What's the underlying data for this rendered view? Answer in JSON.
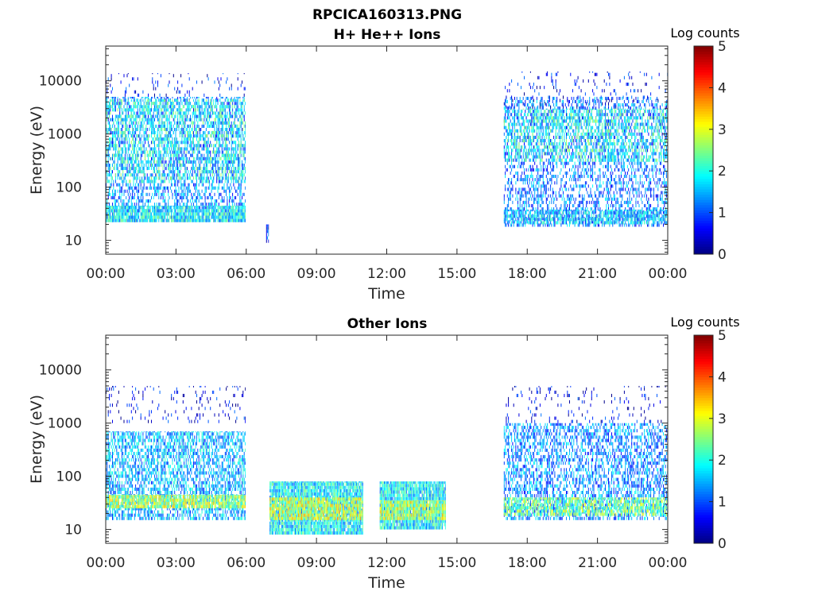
{
  "figure": {
    "title": "RPCICA160313.PNG"
  },
  "chart_data": [
    {
      "type": "heatmap",
      "title": "H+ He++ Ions",
      "xlabel": "Time",
      "ylabel": "Energy (eV)",
      "x_unit": "hours",
      "xlim": [
        0,
        24
      ],
      "x_ticks": [
        0,
        3,
        6,
        9,
        12,
        15,
        18,
        21,
        24
      ],
      "x_tick_labels": [
        "00:00",
        "03:00",
        "06:00",
        "09:00",
        "12:00",
        "15:00",
        "18:00",
        "21:00",
        "00:00"
      ],
      "y_scale": "log",
      "ylim": [
        5.5,
        45000
      ],
      "y_ticks": [
        10,
        100,
        1000,
        10000
      ],
      "y_tick_labels": [
        "10",
        "100",
        "1000",
        "10000"
      ],
      "colorbar": {
        "label": "Log counts",
        "range": [
          0,
          5
        ],
        "ticks": [
          0,
          1,
          2,
          3,
          4,
          5
        ],
        "colormap": "jet"
      },
      "blocks": [
        {
          "t": [
            0.0,
            5.95
          ],
          "e": [
            22,
            5000
          ],
          "level": 1.3,
          "density": 0.45
        },
        {
          "t": [
            0.0,
            5.95
          ],
          "e": [
            22,
            45
          ],
          "level": 1.8,
          "density": 0.85
        },
        {
          "t": [
            0.0,
            5.95
          ],
          "e": [
            120,
            4500
          ],
          "level": 2.0,
          "density": 0.35
        },
        {
          "t": [
            0.0,
            5.95
          ],
          "e": [
            5000,
            14000
          ],
          "level": 0.6,
          "density": 0.08
        },
        {
          "t": [
            6.85,
            6.95
          ],
          "e": [
            9,
            20
          ],
          "level": 0.8,
          "density": 0.9
        },
        {
          "t": [
            17.0,
            24.0
          ],
          "e": [
            18,
            5000
          ],
          "level": 1.2,
          "density": 0.4
        },
        {
          "t": [
            17.0,
            24.0
          ],
          "e": [
            20,
            38
          ],
          "level": 1.6,
          "density": 0.7
        },
        {
          "t": [
            17.0,
            24.0
          ],
          "e": [
            300,
            3000
          ],
          "level": 2.0,
          "density": 0.4
        },
        {
          "t": [
            17.0,
            24.0
          ],
          "e": [
            3000,
            15000
          ],
          "level": 0.6,
          "density": 0.08
        }
      ]
    },
    {
      "type": "heatmap",
      "title": "Other Ions",
      "xlabel": "Time",
      "ylabel": "Energy (eV)",
      "x_unit": "hours",
      "xlim": [
        0,
        24
      ],
      "x_ticks": [
        0,
        3,
        6,
        9,
        12,
        15,
        18,
        21,
        24
      ],
      "x_tick_labels": [
        "00:00",
        "03:00",
        "06:00",
        "09:00",
        "12:00",
        "15:00",
        "18:00",
        "21:00",
        "00:00"
      ],
      "y_scale": "log",
      "ylim": [
        5.5,
        45000
      ],
      "y_ticks": [
        10,
        100,
        1000,
        10000
      ],
      "y_tick_labels": [
        "10",
        "100",
        "1000",
        "10000"
      ],
      "colorbar": {
        "label": "Log counts",
        "range": [
          0,
          5
        ],
        "ticks": [
          0,
          1,
          2,
          3,
          4,
          5
        ],
        "colormap": "jet"
      },
      "blocks": [
        {
          "t": [
            0.0,
            5.95
          ],
          "e": [
            15,
            700
          ],
          "level": 1.5,
          "density": 0.6
        },
        {
          "t": [
            0.0,
            5.95
          ],
          "e": [
            25,
            45
          ],
          "level": 2.7,
          "density": 0.85
        },
        {
          "t": [
            0.0,
            5.95
          ],
          "e": [
            1000,
            5000
          ],
          "level": 0.5,
          "density": 0.1
        },
        {
          "t": [
            7.0,
            11.0
          ],
          "e": [
            8,
            80
          ],
          "level": 1.8,
          "density": 0.95
        },
        {
          "t": [
            7.0,
            11.0
          ],
          "e": [
            15,
            40
          ],
          "level": 2.9,
          "density": 0.8
        },
        {
          "t": [
            11.7,
            14.5
          ],
          "e": [
            10,
            80
          ],
          "level": 1.8,
          "density": 0.95
        },
        {
          "t": [
            11.7,
            14.5
          ],
          "e": [
            15,
            35
          ],
          "level": 2.8,
          "density": 0.8
        },
        {
          "t": [
            17.0,
            24.0
          ],
          "e": [
            15,
            1000
          ],
          "level": 1.3,
          "density": 0.5
        },
        {
          "t": [
            17.0,
            24.0
          ],
          "e": [
            18,
            40
          ],
          "level": 2.4,
          "density": 0.7
        },
        {
          "t": [
            17.0,
            24.0
          ],
          "e": [
            1000,
            5000
          ],
          "level": 0.5,
          "density": 0.08
        }
      ]
    }
  ]
}
